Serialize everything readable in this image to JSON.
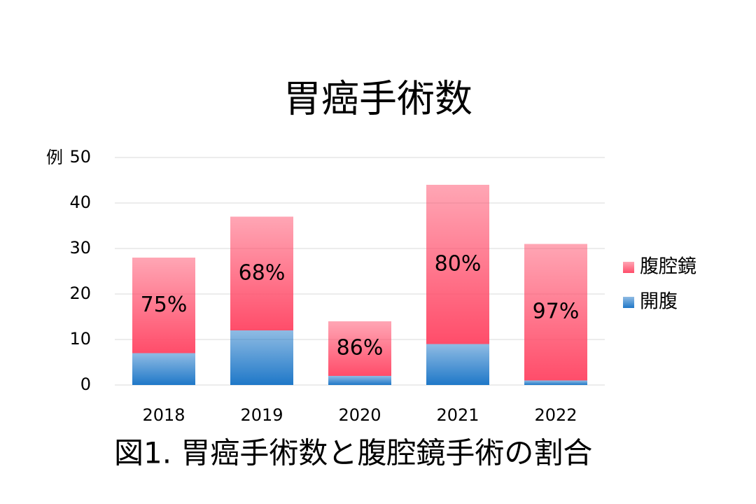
{
  "chart_data": {
    "type": "stacked_bar",
    "title": "胃癌手術数",
    "y_unit": "例",
    "categories": [
      "2018",
      "2019",
      "2020",
      "2021",
      "2022"
    ],
    "series": [
      {
        "name": "開腹",
        "color": "#1f78c8",
        "values": [
          7,
          12,
          2,
          9,
          1
        ]
      },
      {
        "name": "腹腔鏡",
        "color": "#ff4d6a",
        "values": [
          21,
          25,
          12,
          35,
          30
        ]
      }
    ],
    "percent_labels": [
      "75%",
      "68%",
      "86%",
      "80%",
      "97%"
    ],
    "ylim": [
      0,
      50
    ],
    "yticks": [
      0,
      10,
      20,
      30,
      40,
      50
    ],
    "grid": true,
    "legend": "right",
    "caption": "図1. 胃癌手術数と腹腔鏡手術の割合"
  }
}
